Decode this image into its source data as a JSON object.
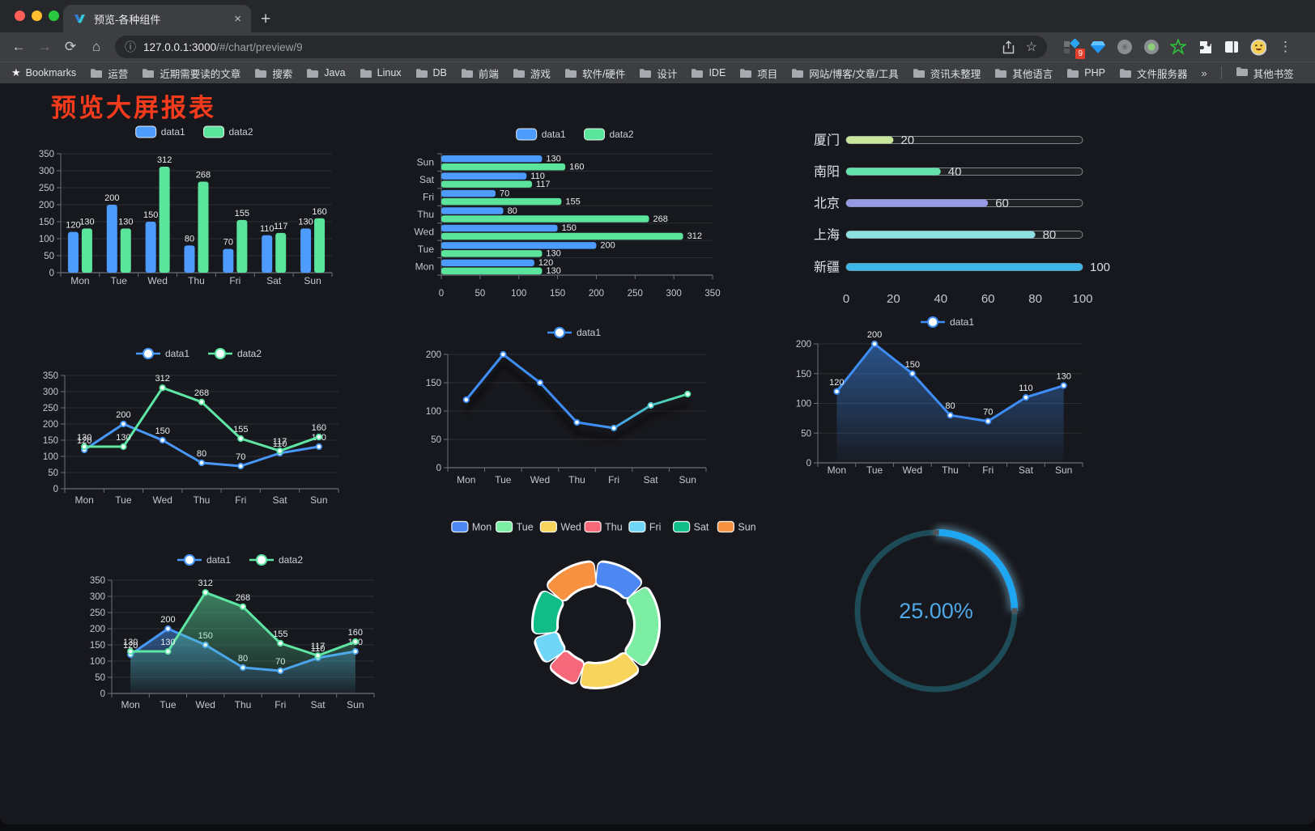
{
  "browser": {
    "tab": {
      "title": "预览-各种组件",
      "close": "×"
    },
    "new_tab": "+",
    "nav": {
      "back": "←",
      "forward": "→",
      "reload": "⟳",
      "home": "⌂"
    },
    "omnibox": {
      "info": "ⓘ",
      "url_host": "127.0.0.1:3000",
      "url_path": "/#/chart/preview/9",
      "star": "☆"
    },
    "extensions_badge": "9",
    "menu_dots": "⋮",
    "bookmarks_bar": {
      "star_label": "Bookmarks",
      "folders": [
        "运营",
        "近期需要读的文章",
        "搜索",
        "Java",
        "Linux",
        "DB",
        "前端",
        "游戏",
        "软件/硬件",
        "设计",
        "IDE",
        "项目",
        "网站/博客/文章/工具",
        "资讯未整理",
        "其他语言",
        "PHP",
        "文件服务器"
      ],
      "overflow": "»",
      "other": "其他书签"
    }
  },
  "page": {
    "title": "预览大屏报表",
    "title_color": "#f73b1c"
  },
  "chart_data": [
    {
      "type": "bar",
      "title": "grouped vertical bar",
      "categories": [
        "Mon",
        "Tue",
        "Wed",
        "Thu",
        "Fri",
        "Sat",
        "Sun"
      ],
      "series": [
        {
          "name": "data1",
          "color": "#4C9BFD",
          "values": [
            120,
            200,
            150,
            80,
            70,
            110,
            130
          ]
        },
        {
          "name": "data2",
          "color": "#5BE49B",
          "values": [
            130,
            130,
            312,
            268,
            155,
            117,
            160
          ]
        }
      ],
      "ylim": [
        0,
        350
      ],
      "ytick": 50,
      "grid": true,
      "legend_position": "top",
      "value_labels": true
    },
    {
      "type": "hbar",
      "title": "grouped horizontal bar",
      "categories": [
        "Mon",
        "Tue",
        "Wed",
        "Thu",
        "Fri",
        "Sat",
        "Sun"
      ],
      "series": [
        {
          "name": "data1",
          "color": "#4C9BFD",
          "values": [
            120,
            200,
            150,
            80,
            70,
            110,
            130
          ]
        },
        {
          "name": "data2",
          "color": "#5BE49B",
          "values": [
            130,
            130,
            312,
            268,
            155,
            117,
            160
          ]
        }
      ],
      "xlim": [
        0,
        350
      ],
      "xtick": 50,
      "legend_position": "top",
      "value_labels": true
    },
    {
      "type": "progress",
      "title": "city progress bars",
      "categories": [
        "厦门",
        "南阳",
        "北京",
        "上海",
        "新疆"
      ],
      "values": [
        20,
        40,
        60,
        80,
        100
      ],
      "colors": [
        "#c8e79b",
        "#63e2ab",
        "#949ae6",
        "#8fe0e2",
        "#3db6e8"
      ],
      "xlim": [
        0,
        100
      ],
      "xticks": [
        0,
        20,
        40,
        60,
        80,
        100
      ]
    },
    {
      "type": "line",
      "title": "two-series line",
      "categories": [
        "Mon",
        "Tue",
        "Wed",
        "Thu",
        "Fri",
        "Sat",
        "Sun"
      ],
      "series": [
        {
          "name": "data1",
          "color": "#4898F9",
          "values": [
            120,
            200,
            150,
            80,
            70,
            110,
            130
          ]
        },
        {
          "name": "data2",
          "color": "#5EE7A4",
          "values": [
            130,
            130,
            312,
            268,
            155,
            117,
            160
          ]
        }
      ],
      "ylim": [
        0,
        350
      ],
      "ytick": 50,
      "value_labels": true
    },
    {
      "type": "line",
      "title": "gradient line",
      "categories": [
        "Mon",
        "Tue",
        "Wed",
        "Thu",
        "Fri",
        "Sat",
        "Sun"
      ],
      "series": [
        {
          "name": "data1",
          "gradient": [
            "#3E8EF7",
            "#53E6A6"
          ],
          "values": [
            120,
            200,
            150,
            80,
            70,
            110,
            130
          ],
          "shadow": true
        }
      ],
      "ylim": [
        0,
        200
      ],
      "ytick": 50,
      "value_labels": false
    },
    {
      "type": "line",
      "title": "area line",
      "categories": [
        "Mon",
        "Tue",
        "Wed",
        "Thu",
        "Fri",
        "Sat",
        "Sun"
      ],
      "series": [
        {
          "name": "data1",
          "color": "#3E8EF7",
          "area": true,
          "values": [
            120,
            200,
            150,
            80,
            70,
            110,
            130
          ]
        }
      ],
      "ylim": [
        0,
        200
      ],
      "ytick": 50,
      "value_labels": true
    },
    {
      "type": "line",
      "title": "two-series area line",
      "categories": [
        "Mon",
        "Tue",
        "Wed",
        "Thu",
        "Fri",
        "Sat",
        "Sun"
      ],
      "series": [
        {
          "name": "data1",
          "color": "#4898F9",
          "area": true,
          "values": [
            120,
            200,
            150,
            80,
            70,
            110,
            130
          ]
        },
        {
          "name": "data2",
          "color": "#5EE7A4",
          "area": true,
          "values": [
            130,
            130,
            312,
            268,
            155,
            117,
            160
          ]
        }
      ],
      "ylim": [
        0,
        350
      ],
      "ytick": 50,
      "value_labels": true
    },
    {
      "type": "pie",
      "title": "donut weekdays",
      "categories": [
        "Mon",
        "Tue",
        "Wed",
        "Thu",
        "Fri",
        "Sat",
        "Sun"
      ],
      "values": [
        120,
        200,
        150,
        80,
        70,
        110,
        130
      ],
      "colors": [
        "#4D88F2",
        "#7CEEA4",
        "#F7D55C",
        "#F5697B",
        "#70D6F7",
        "#10BD87",
        "#F79140"
      ],
      "inner_radius_ratio": 0.62,
      "legend_position": "top"
    },
    {
      "type": "gauge",
      "title": "percent gauge",
      "value": 25,
      "label": "25.00%",
      "color": "#1FA6F2",
      "track_color": "#1d4b57",
      "text_color": "#4FA8E8"
    }
  ]
}
